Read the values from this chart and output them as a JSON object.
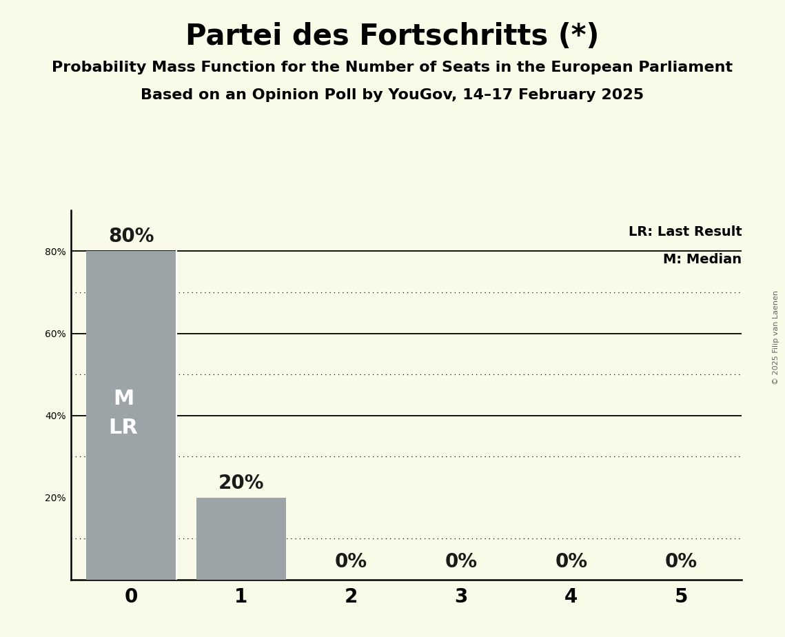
{
  "title": "Partei des Fortschritts (*)",
  "subtitle1": "Probability Mass Function for the Number of Seats in the European Parliament",
  "subtitle2": "Based on an Opinion Poll by YouGov, 14–17 February 2025",
  "copyright": "© 2025 Filip van Laenen",
  "categories": [
    0,
    1,
    2,
    3,
    4,
    5
  ],
  "values": [
    0.8,
    0.2,
    0.0,
    0.0,
    0.0,
    0.0
  ],
  "bar_color": "#9DA4A8",
  "background_color": "#FAFAE8",
  "bar_label_color": "#1A1A1A",
  "bar_inside_text_color": "#FFFFFF",
  "ylim": [
    0,
    0.9
  ],
  "yticks": [
    0.2,
    0.4,
    0.6,
    0.8
  ],
  "ytick_labels": [
    "20%",
    "40%",
    "60%",
    "80%"
  ],
  "solid_gridlines": [
    0.4,
    0.6,
    0.8
  ],
  "dotted_gridlines": [
    0.1,
    0.3,
    0.5,
    0.7
  ],
  "legend_lr": "LR: Last Result",
  "legend_m": "M: Median",
  "title_fontsize": 30,
  "subtitle_fontsize": 16,
  "axis_tick_fontsize": 20,
  "bar_label_fontsize": 20,
  "inside_text_fontsize": 22,
  "legend_fontsize": 14,
  "copyright_fontsize": 8,
  "bar_width": 0.82
}
